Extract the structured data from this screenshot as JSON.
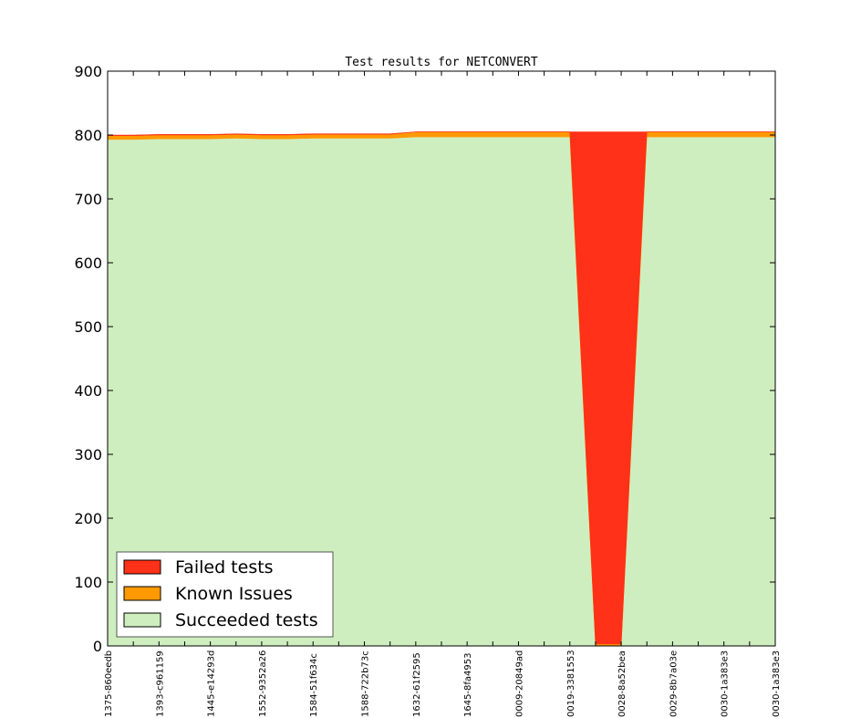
{
  "chart_data": {
    "type": "area",
    "title": "Test results for NETCONVERT",
    "xlabel": "",
    "ylabel": "",
    "ylim": [
      0,
      900
    ],
    "yticks": [
      0,
      100,
      200,
      300,
      400,
      500,
      600,
      700,
      800,
      900
    ],
    "grid": false,
    "stacked": true,
    "legend_position": "bottom-left",
    "x_count": 27,
    "x_tick_labels": [
      "1375-860eedb",
      "1393-c961159",
      "1445-e14293d",
      "1552-9352a26",
      "1584-51f634c",
      "1588-722b73c",
      "1632-61f2595",
      "1645-8fa4953",
      "0009-20849ad",
      "0019-3381553",
      "0028-8a52bea",
      "0029-8b7a03e",
      "0030-1a383e3",
      "0030-1a383e3"
    ],
    "x_tick_positions": [
      0,
      2,
      4,
      6,
      8,
      10,
      12,
      14,
      16,
      18,
      20,
      22,
      24,
      26
    ],
    "series": [
      {
        "name": "Succeeded tests",
        "color": "#cfeebf",
        "values": [
          793,
          793,
          794,
          794,
          794,
          795,
          794,
          794,
          795,
          795,
          795,
          795,
          797,
          797,
          797,
          797,
          797,
          797,
          797,
          0,
          0,
          797,
          797,
          797,
          797,
          797,
          797
        ]
      },
      {
        "name": "Known Issues",
        "color": "#ff9900",
        "values": [
          6,
          6,
          6,
          6,
          6,
          6,
          6,
          6,
          6,
          6,
          6,
          6,
          8,
          8,
          8,
          8,
          8,
          8,
          8,
          3,
          3,
          8,
          8,
          8,
          8,
          8,
          8
        ]
      },
      {
        "name": "Failed tests",
        "color": "#ff3118",
        "values": [
          1,
          1,
          1,
          1,
          1,
          1,
          1,
          1,
          1,
          1,
          1,
          1,
          0,
          0,
          0,
          0,
          0,
          0,
          0,
          802,
          802,
          0,
          0,
          0,
          0,
          0,
          0
        ]
      }
    ],
    "legend_entries": [
      "Failed tests",
      "Known Issues",
      "Succeeded tests"
    ]
  }
}
